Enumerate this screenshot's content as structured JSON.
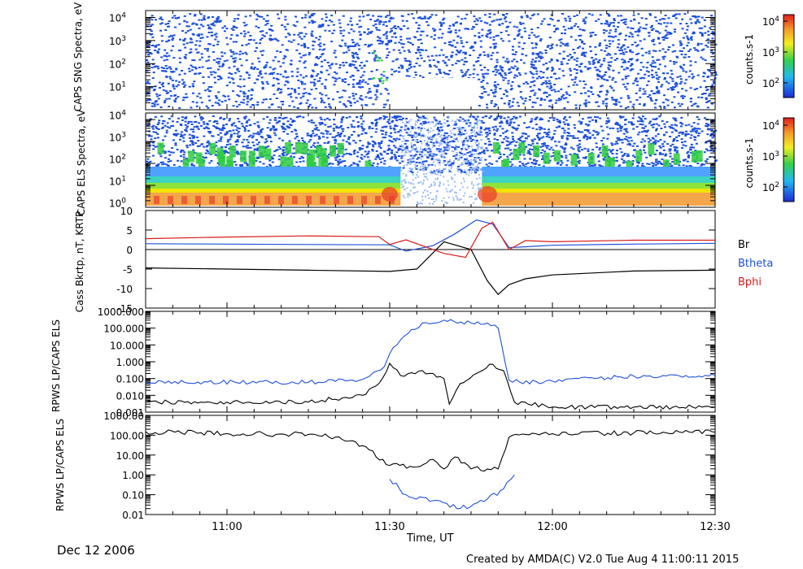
{
  "window": {
    "date_label": "Dec 12 2006",
    "footer": "Created by AMDA(C) V2.0 Tue Aug  4 11:00:11 2015"
  },
  "colors": {
    "blue_trace": "#1f4fd8",
    "red_trace": "#d81b1b",
    "black_trace": "#000000",
    "speck_blue": "#1a4fdc",
    "speck_green": "#2ecc40",
    "speck_yellow": "#f2e400",
    "speck_red": "#e8402a"
  },
  "chart_data": [
    {
      "type": "heatmap",
      "id": "panel-caps-sng",
      "ylabel": "CAPS SNG Spectra, eV",
      "yscale": "log",
      "yticks": [
        "10^1",
        "10^2",
        "10^3",
        "10^4"
      ],
      "colorbar": {
        "label": "counts.s-1",
        "ticks": [
          "10^2",
          "10^3",
          "10^4"
        ]
      },
      "features": "sparse blue speckle across 10^0-10^4 eV; data gap ~11:30-11:46 below ~20 eV"
    },
    {
      "type": "heatmap",
      "id": "panel-caps-els",
      "ylabel": "CAPS ELS Spectra, eV",
      "yscale": "log",
      "yticks": [
        "10^0",
        "10^1",
        "10^2",
        "10^3",
        "10^4"
      ],
      "colorbar": {
        "label": "counts.s-1",
        "ticks": [
          "10^2",
          "10^3",
          "10^4"
        ]
      },
      "features": "intense red-orange low-energy band near 10^0 eV outside 11:32-11:47; green/blue patches near 10^3 eV"
    },
    {
      "type": "line",
      "id": "panel-mag",
      "ylabel": "Cass Bkrtp, nT, KRTP",
      "ylim": [
        -15,
        10
      ],
      "yticks": [
        10,
        5,
        0,
        -5,
        -10,
        -15
      ],
      "series": [
        {
          "name": "Br",
          "color": "#000000",
          "x": [
            "10:45",
            "11:00",
            "11:15",
            "11:30",
            "11:35",
            "11:40",
            "11:45",
            "11:48",
            "11:50",
            "11:52",
            "11:55",
            "12:00",
            "12:15",
            "12:30"
          ],
          "values": [
            -4.7,
            -5.0,
            -5.3,
            -5.6,
            -5.0,
            2.0,
            0.0,
            -8.0,
            -11.5,
            -9.0,
            -7.5,
            -6.5,
            -5.5,
            -5.3
          ]
        },
        {
          "name": "Btheta",
          "color": "#1f4fd8",
          "x": [
            "10:45",
            "11:00",
            "11:15",
            "11:30",
            "11:33",
            "11:38",
            "11:42",
            "11:46",
            "11:49",
            "11:52",
            "11:55",
            "12:00",
            "12:15",
            "12:30"
          ],
          "values": [
            1.5,
            1.4,
            1.3,
            1.2,
            -0.4,
            1.0,
            4.0,
            7.6,
            6.5,
            0.5,
            0.7,
            1.1,
            1.4,
            1.6
          ]
        },
        {
          "name": "Bphi",
          "color": "#d81b1b",
          "x": [
            "10:45",
            "11:00",
            "11:15",
            "11:28",
            "11:30",
            "11:33",
            "11:36",
            "11:40",
            "11:44",
            "11:47",
            "11:49",
            "11:52",
            "11:55",
            "12:00",
            "12:15",
            "12:30"
          ],
          "values": [
            2.8,
            3.2,
            3.5,
            3.3,
            1.3,
            2.5,
            1.0,
            -1.0,
            -2.0,
            5.5,
            7.0,
            0.0,
            2.3,
            2.0,
            2.4,
            2.4
          ]
        }
      ]
    },
    {
      "type": "line",
      "id": "panel-rpws-1",
      "ylabel": "RPWS LP/CAPS ELS",
      "yscale": "log",
      "ylim": [
        0.001,
        1000
      ],
      "ytick_labels": [
        "1000.000",
        "100.000",
        "10.000",
        "1.000",
        "0.100",
        "0.010",
        "0.001"
      ],
      "series": [
        {
          "name": "",
          "color": "#1f4fd8",
          "x": [
            "10:45",
            "11:15",
            "11:25",
            "11:29",
            "11:30",
            "11:32",
            "11:36",
            "11:40",
            "11:45",
            "11:48",
            "11:50",
            "11:52",
            "11:54",
            "12:00",
            "12:15",
            "12:30"
          ],
          "values": [
            0.06,
            0.06,
            0.09,
            0.5,
            3.0,
            20,
            200,
            300,
            200,
            200,
            100,
            0.08,
            0.06,
            0.07,
            0.14,
            0.15
          ]
        },
        {
          "name": "",
          "color": "#000000",
          "x": [
            "10:45",
            "11:00",
            "11:15",
            "11:25",
            "11:28",
            "11:30",
            "11:32",
            "11:36",
            "11:40",
            "11:41",
            "11:43",
            "11:46",
            "11:49",
            "11:51",
            "11:53",
            "12:00",
            "12:15",
            "12:30"
          ],
          "values": [
            0.004,
            0.004,
            0.004,
            0.01,
            0.05,
            0.8,
            0.15,
            0.3,
            0.1,
            0.003,
            0.05,
            0.2,
            0.7,
            0.3,
            0.004,
            0.002,
            0.002,
            0.002
          ]
        }
      ]
    },
    {
      "type": "line",
      "id": "panel-rpws-2",
      "ylabel": "RPWS LP/CAPS ELS",
      "yscale": "log",
      "ylim": [
        0.01,
        1000
      ],
      "ytick_labels": [
        "1000.00",
        "100.00",
        "10.00",
        "1.00",
        "0.10",
        "0.01"
      ],
      "series": [
        {
          "name": "",
          "color": "#000000",
          "x": [
            "10:45",
            "11:00",
            "11:15",
            "11:20",
            "11:25",
            "11:30",
            "11:35",
            "11:38",
            "11:40",
            "11:42",
            "11:45",
            "11:48",
            "11:50",
            "11:52",
            "12:00",
            "12:15",
            "12:30"
          ],
          "values": [
            150,
            120,
            110,
            80,
            30,
            3,
            2.5,
            6,
            2,
            8,
            2,
            2,
            2,
            80,
            120,
            130,
            140
          ]
        },
        {
          "name": "",
          "color": "#1f4fd8",
          "x": [
            "11:30",
            "11:33",
            "11:38",
            "11:43",
            "11:48",
            "11:51",
            "11:53"
          ],
          "values": [
            0.6,
            0.1,
            0.05,
            0.02,
            0.06,
            0.2,
            1.0
          ]
        }
      ]
    }
  ],
  "xaxis": {
    "label": "Time, UT",
    "range": [
      "10:45",
      "12:30"
    ],
    "ticks": [
      "11:00",
      "11:30",
      "12:00",
      "12:30"
    ]
  }
}
